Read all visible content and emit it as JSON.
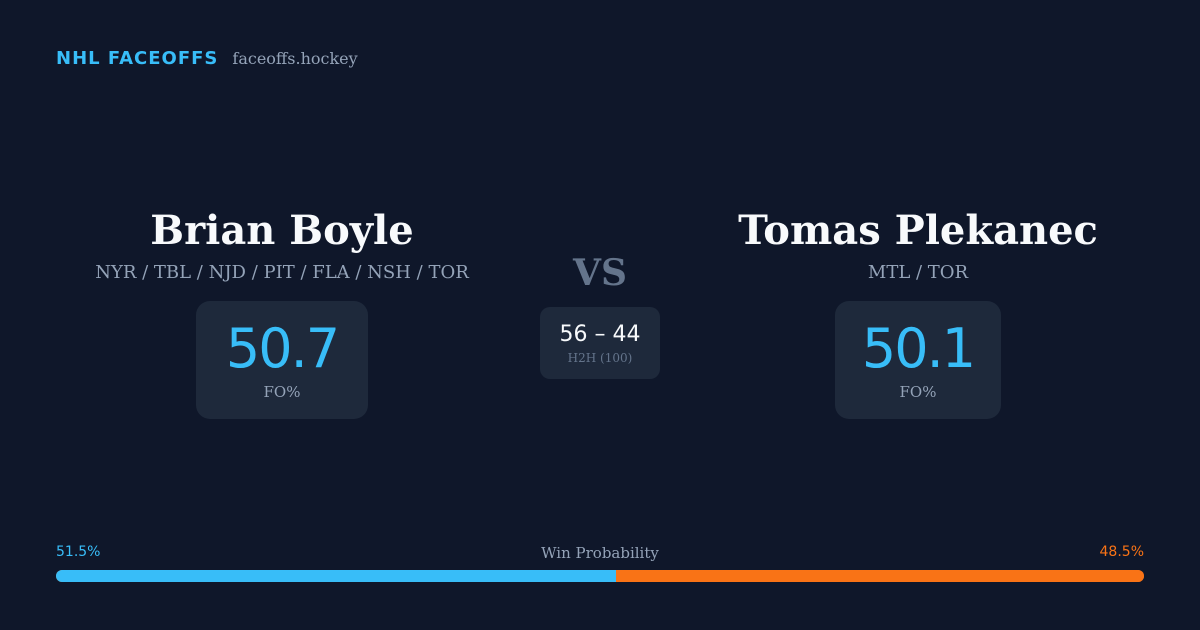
{
  "brand": {
    "name": "NHL FACEOFFS",
    "domain": "faceoffs.hockey"
  },
  "player_left": {
    "name": "Brian Boyle",
    "teams": "NYR / TBL / NJD / PIT / FLA / NSH / TOR",
    "fo_value": "50.7",
    "fo_label": "FO%"
  },
  "player_right": {
    "name": "Tomas Plekanec",
    "teams": "MTL / TOR",
    "fo_value": "50.1",
    "fo_label": "FO%"
  },
  "versus": {
    "label": "VS",
    "h2h_score": "56 – 44",
    "h2h_label": "H2H (100)"
  },
  "win_probability": {
    "label": "Win Probability",
    "left_text": "51.5%",
    "right_text": "48.5%",
    "left_fraction": 0.515,
    "right_fraction": 0.485,
    "left_color": "#38bdf8",
    "right_color": "#f97316"
  }
}
